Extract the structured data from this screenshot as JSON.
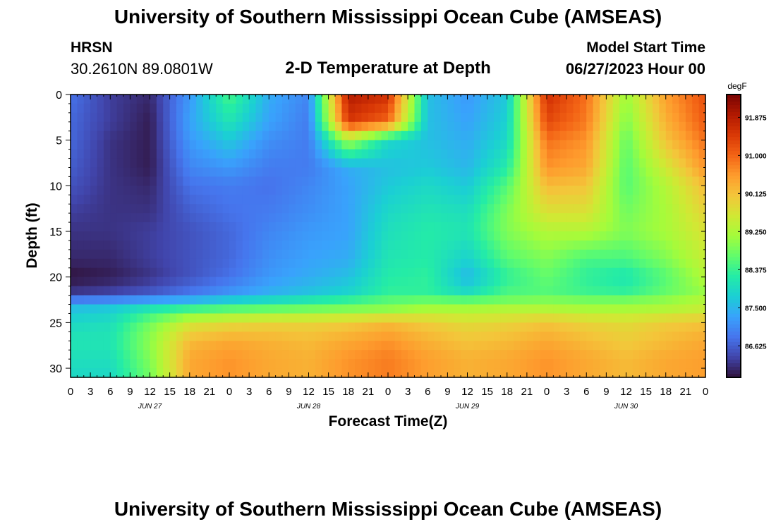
{
  "header": {
    "title": "University of Southern Mississippi Ocean Cube (AMSEAS)",
    "station": "HRSN",
    "coords": "30.2610N  89.0801W",
    "subtitle": "2-D Temperature at Depth",
    "start_label": "Model Start Time",
    "start_date": "06/27/2023 Hour 00"
  },
  "footer": {
    "title": "University of Southern Mississippi Ocean Cube (AMSEAS)"
  },
  "chart_data": {
    "type": "heatmap",
    "title": "2-D Temperature at Depth",
    "xlabel": "Forecast Time(Z)",
    "ylabel": "Depth (ft)",
    "x_tick_labels": [
      "0",
      "3",
      "6",
      "9",
      "12",
      "15",
      "18",
      "21",
      "0",
      "3",
      "6",
      "9",
      "12",
      "15",
      "18",
      "21",
      "0",
      "3",
      "6",
      "9",
      "12",
      "15",
      "18",
      "21",
      "0",
      "3",
      "6",
      "9",
      "12",
      "15",
      "18",
      "21",
      "0"
    ],
    "x_day_labels": [
      "JUN 27",
      "JUN 28",
      "JUN 29",
      "JUN 30"
    ],
    "xlim_hours": [
      0,
      96
    ],
    "ylim_ft": [
      0,
      31
    ],
    "y_inverted": true,
    "y_ticks": [
      0,
      5,
      10,
      15,
      20,
      25,
      30
    ],
    "colorbar": {
      "unit": "degF",
      "min": 85.9,
      "max": 92.4,
      "tick_values": [
        86.625,
        87.5,
        88.375,
        89.25,
        90.125,
        91.0,
        91.875
      ],
      "tick_labels": [
        "86.625",
        "87.500",
        "88.375",
        "89.250",
        "90.125",
        "91.000",
        "91.875"
      ]
    },
    "colormap": [
      "#30123b",
      "#4145ab",
      "#4675ed",
      "#39a2fc",
      "#1bcfd4",
      "#24eca6",
      "#61fc6c",
      "#a4fc3b",
      "#d1e834",
      "#f3c63a",
      "#fe9b2d",
      "#f36315",
      "#d93806",
      "#b11901",
      "#7a0403"
    ],
    "hours": [
      0,
      6,
      12,
      18,
      24,
      30,
      36,
      42,
      48,
      54,
      60,
      66,
      72,
      78,
      84,
      90,
      96
    ],
    "depths_ft": [
      0,
      3,
      5,
      8,
      10,
      13,
      15,
      18,
      20,
      21.5,
      22.5,
      23.5,
      25,
      27,
      29,
      31
    ],
    "values_degF": [
      [
        86.8,
        86.3,
        86.1,
        87.2,
        88.5,
        87.4,
        87.0,
        91.9,
        91.6,
        87.6,
        87.2,
        87.7,
        91.6,
        90.9,
        89.1,
        90.5,
        91.2
      ],
      [
        86.7,
        86.3,
        86.0,
        87.3,
        88.1,
        87.3,
        86.9,
        91.5,
        91.0,
        87.6,
        87.3,
        87.8,
        91.3,
        90.8,
        88.9,
        90.3,
        91.1
      ],
      [
        86.7,
        86.2,
        86.0,
        87.2,
        87.7,
        87.1,
        86.9,
        89.2,
        87.9,
        87.6,
        87.4,
        87.9,
        90.9,
        90.6,
        88.7,
        90.1,
        90.9
      ],
      [
        86.6,
        86.2,
        86.0,
        87.0,
        87.2,
        86.9,
        86.9,
        87.4,
        87.6,
        87.7,
        87.5,
        88.2,
        90.6,
        90.4,
        88.6,
        89.6,
        90.6
      ],
      [
        86.5,
        86.2,
        86.1,
        86.8,
        86.9,
        86.8,
        87.0,
        87.3,
        87.7,
        87.9,
        87.7,
        88.6,
        90.2,
        90.1,
        88.6,
        89.3,
        90.2
      ],
      [
        86.3,
        86.2,
        86.2,
        86.6,
        86.8,
        86.9,
        87.1,
        87.3,
        87.9,
        88.1,
        88.0,
        88.9,
        89.7,
        89.7,
        88.8,
        89.2,
        89.9
      ],
      [
        86.2,
        86.2,
        86.3,
        86.5,
        86.7,
        87.0,
        87.2,
        87.3,
        88.0,
        88.2,
        88.1,
        88.9,
        89.3,
        89.3,
        88.9,
        89.2,
        89.7
      ],
      [
        86.1,
        86.1,
        86.3,
        86.5,
        86.7,
        87.1,
        87.3,
        87.4,
        88.1,
        88.2,
        87.8,
        88.6,
        88.9,
        88.5,
        88.5,
        88.9,
        89.5
      ],
      [
        85.9,
        86.0,
        86.2,
        86.5,
        86.8,
        87.2,
        87.4,
        87.6,
        88.2,
        88.3,
        87.5,
        88.3,
        88.7,
        88.3,
        88.1,
        88.6,
        89.3
      ],
      [
        86.2,
        86.3,
        86.5,
        86.8,
        87.1,
        87.4,
        87.6,
        87.8,
        88.3,
        88.3,
        87.9,
        88.5,
        88.6,
        88.4,
        88.3,
        88.7,
        89.1
      ],
      [
        86.9,
        87.0,
        87.2,
        87.4,
        87.7,
        87.9,
        88.1,
        88.3,
        88.6,
        88.7,
        88.6,
        88.8,
        88.9,
        88.8,
        88.8,
        89.0,
        89.3
      ],
      [
        87.6,
        87.7,
        88.1,
        88.4,
        88.6,
        88.7,
        88.8,
        88.9,
        89.0,
        89.2,
        89.2,
        89.3,
        89.3,
        89.2,
        89.2,
        89.3,
        89.5
      ],
      [
        87.9,
        88.0,
        88.8,
        89.6,
        89.8,
        89.9,
        89.9,
        90.0,
        90.2,
        90.0,
        89.8,
        89.9,
        90.1,
        89.9,
        89.8,
        90.0,
        90.1
      ],
      [
        88.1,
        88.1,
        89.0,
        90.2,
        90.4,
        90.3,
        90.2,
        90.4,
        90.6,
        90.3,
        90.1,
        90.2,
        90.4,
        90.2,
        90.0,
        90.2,
        90.4
      ],
      [
        88.0,
        88.0,
        88.9,
        90.4,
        90.6,
        90.4,
        90.3,
        90.6,
        90.8,
        90.5,
        90.3,
        90.4,
        90.6,
        90.4,
        90.2,
        90.4,
        90.5
      ],
      [
        87.9,
        87.9,
        88.8,
        90.4,
        90.6,
        90.4,
        90.3,
        90.6,
        90.8,
        90.5,
        90.3,
        90.4,
        90.6,
        90.4,
        90.2,
        90.4,
        90.5
      ]
    ]
  }
}
